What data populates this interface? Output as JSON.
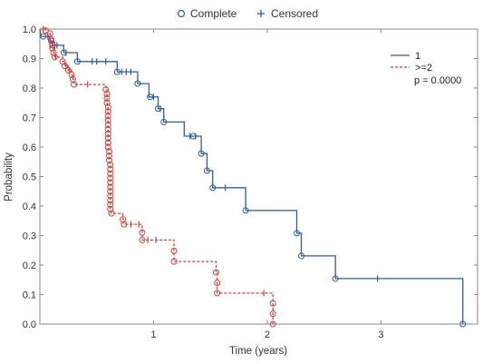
{
  "chart_data": {
    "type": "line",
    "title": "",
    "xlabel": "Time (years)",
    "ylabel": "Probability",
    "xlim": [
      0,
      3.85
    ],
    "ylim": [
      0,
      1.0
    ],
    "x_ticks": [
      "1",
      "2",
      "3"
    ],
    "x_tick_values": [
      1,
      2,
      3
    ],
    "y_ticks": [
      "0.0",
      "0.1",
      "0.2",
      "0.3",
      "0.4",
      "0.5",
      "0.6",
      "0.7",
      "0.8",
      "0.9",
      "1.0"
    ],
    "y_tick_values": [
      0,
      0.1,
      0.2,
      0.3,
      0.4,
      0.5,
      0.6,
      0.7,
      0.8,
      0.9,
      1.0
    ],
    "grid": false,
    "top_legend": {
      "complete_label": "Complete",
      "censored_label": "Censored",
      "color": "#2f5f9e"
    },
    "inner_legend": {
      "placement": "top-right",
      "entries": [
        "1",
        ">=2"
      ],
      "pvalue_text": "p = 0.0000"
    },
    "series": [
      {
        "name": "1",
        "color": "#2f5f9e",
        "line_style": "solid",
        "steps": [
          [
            0.0,
            1.0
          ],
          [
            0.01,
            0.975
          ],
          [
            0.09,
            0.975
          ],
          [
            0.09,
            0.96
          ],
          [
            0.11,
            0.96
          ],
          [
            0.11,
            0.945
          ],
          [
            0.21,
            0.945
          ],
          [
            0.21,
            0.92
          ],
          [
            0.33,
            0.92
          ],
          [
            0.33,
            0.89
          ],
          [
            0.68,
            0.89
          ],
          [
            0.68,
            0.855
          ],
          [
            0.86,
            0.855
          ],
          [
            0.86,
            0.815
          ],
          [
            0.96,
            0.815
          ],
          [
            0.96,
            0.77
          ],
          [
            1.04,
            0.77
          ],
          [
            1.04,
            0.73
          ],
          [
            1.09,
            0.73
          ],
          [
            1.09,
            0.685
          ],
          [
            1.27,
            0.685
          ],
          [
            1.27,
            0.637
          ],
          [
            1.42,
            0.637
          ],
          [
            1.42,
            0.578
          ],
          [
            1.47,
            0.578
          ],
          [
            1.47,
            0.52
          ],
          [
            1.52,
            0.52
          ],
          [
            1.52,
            0.462
          ],
          [
            1.81,
            0.462
          ],
          [
            1.81,
            0.385
          ],
          [
            2.26,
            0.385
          ],
          [
            2.26,
            0.308
          ],
          [
            2.3,
            0.308
          ],
          [
            2.3,
            0.231
          ],
          [
            2.6,
            0.231
          ],
          [
            2.6,
            0.154
          ],
          [
            3.72,
            0.154
          ],
          [
            3.72,
            0.0
          ]
        ],
        "complete_points": [
          [
            0.03,
            0.975
          ],
          [
            0.1,
            0.96
          ],
          [
            0.11,
            0.945
          ],
          [
            0.21,
            0.92
          ],
          [
            0.33,
            0.89
          ],
          [
            0.68,
            0.855
          ],
          [
            0.86,
            0.815
          ],
          [
            0.97,
            0.77
          ],
          [
            1.04,
            0.73
          ],
          [
            1.09,
            0.685
          ],
          [
            1.35,
            0.637
          ],
          [
            1.42,
            0.578
          ],
          [
            1.47,
            0.52
          ],
          [
            1.52,
            0.462
          ],
          [
            1.81,
            0.385
          ],
          [
            2.26,
            0.308
          ],
          [
            2.3,
            0.231
          ],
          [
            2.6,
            0.154
          ],
          [
            3.72,
            0.0
          ]
        ],
        "censored_points": [
          [
            0.07,
            0.975
          ],
          [
            0.13,
            0.945
          ],
          [
            0.15,
            0.945
          ],
          [
            0.23,
            0.92
          ],
          [
            0.46,
            0.89
          ],
          [
            0.5,
            0.89
          ],
          [
            0.58,
            0.89
          ],
          [
            0.72,
            0.855
          ],
          [
            0.76,
            0.855
          ],
          [
            0.8,
            0.855
          ],
          [
            1.0,
            0.77
          ],
          [
            1.06,
            0.73
          ],
          [
            1.32,
            0.637
          ],
          [
            1.37,
            0.637
          ],
          [
            1.63,
            0.462
          ],
          [
            2.97,
            0.154
          ]
        ]
      },
      {
        "name": ">=2",
        "color": "#d8413a",
        "line_style": "dashed",
        "steps": [
          [
            0.0,
            1.0
          ],
          [
            0.05,
            1.0
          ],
          [
            0.05,
            0.985
          ],
          [
            0.09,
            0.985
          ],
          [
            0.09,
            0.965
          ],
          [
            0.1,
            0.965
          ],
          [
            0.1,
            0.95
          ],
          [
            0.11,
            0.95
          ],
          [
            0.11,
            0.935
          ],
          [
            0.12,
            0.935
          ],
          [
            0.12,
            0.92
          ],
          [
            0.13,
            0.92
          ],
          [
            0.13,
            0.905
          ],
          [
            0.2,
            0.905
          ],
          [
            0.2,
            0.89
          ],
          [
            0.22,
            0.89
          ],
          [
            0.22,
            0.875
          ],
          [
            0.25,
            0.875
          ],
          [
            0.25,
            0.86
          ],
          [
            0.28,
            0.86
          ],
          [
            0.28,
            0.845
          ],
          [
            0.29,
            0.845
          ],
          [
            0.29,
            0.83
          ],
          [
            0.3,
            0.83
          ],
          [
            0.3,
            0.812
          ],
          [
            0.58,
            0.812
          ],
          [
            0.58,
            0.795
          ],
          [
            0.59,
            0.795
          ],
          [
            0.59,
            0.78
          ],
          [
            0.59,
            0.765
          ],
          [
            0.59,
            0.75
          ],
          [
            0.6,
            0.735
          ],
          [
            0.6,
            0.72
          ],
          [
            0.6,
            0.705
          ],
          [
            0.6,
            0.69
          ],
          [
            0.6,
            0.675
          ],
          [
            0.6,
            0.66
          ],
          [
            0.6,
            0.645
          ],
          [
            0.6,
            0.63
          ],
          [
            0.6,
            0.615
          ],
          [
            0.6,
            0.6
          ],
          [
            0.61,
            0.585
          ],
          [
            0.61,
            0.57
          ],
          [
            0.61,
            0.555
          ],
          [
            0.62,
            0.54
          ],
          [
            0.62,
            0.525
          ],
          [
            0.62,
            0.51
          ],
          [
            0.62,
            0.495
          ],
          [
            0.62,
            0.48
          ],
          [
            0.62,
            0.465
          ],
          [
            0.62,
            0.45
          ],
          [
            0.62,
            0.435
          ],
          [
            0.62,
            0.42
          ],
          [
            0.62,
            0.405
          ],
          [
            0.62,
            0.39
          ],
          [
            0.63,
            0.375
          ],
          [
            0.73,
            0.375
          ],
          [
            0.73,
            0.355
          ],
          [
            0.74,
            0.355
          ],
          [
            0.74,
            0.338
          ],
          [
            0.9,
            0.338
          ],
          [
            0.9,
            0.31
          ],
          [
            0.9,
            0.285
          ],
          [
            1.18,
            0.285
          ],
          [
            1.18,
            0.248
          ],
          [
            1.18,
            0.212
          ],
          [
            1.55,
            0.212
          ],
          [
            1.55,
            0.175
          ],
          [
            1.56,
            0.175
          ],
          [
            1.56,
            0.14
          ],
          [
            1.56,
            0.105
          ],
          [
            2.05,
            0.105
          ],
          [
            2.05,
            0.07
          ],
          [
            2.05,
            0.035
          ],
          [
            2.05,
            0.0
          ]
        ],
        "complete_points": [
          [
            0.05,
            0.995
          ],
          [
            0.09,
            0.985
          ],
          [
            0.1,
            0.965
          ],
          [
            0.11,
            0.95
          ],
          [
            0.11,
            0.935
          ],
          [
            0.12,
            0.92
          ],
          [
            0.13,
            0.905
          ],
          [
            0.2,
            0.89
          ],
          [
            0.22,
            0.875
          ],
          [
            0.25,
            0.86
          ],
          [
            0.28,
            0.845
          ],
          [
            0.29,
            0.83
          ],
          [
            0.3,
            0.812
          ],
          [
            0.58,
            0.795
          ],
          [
            0.59,
            0.78
          ],
          [
            0.59,
            0.765
          ],
          [
            0.59,
            0.75
          ],
          [
            0.6,
            0.735
          ],
          [
            0.6,
            0.72
          ],
          [
            0.6,
            0.705
          ],
          [
            0.6,
            0.69
          ],
          [
            0.6,
            0.675
          ],
          [
            0.6,
            0.66
          ],
          [
            0.6,
            0.645
          ],
          [
            0.6,
            0.63
          ],
          [
            0.6,
            0.615
          ],
          [
            0.6,
            0.6
          ],
          [
            0.61,
            0.585
          ],
          [
            0.61,
            0.57
          ],
          [
            0.61,
            0.555
          ],
          [
            0.62,
            0.54
          ],
          [
            0.62,
            0.525
          ],
          [
            0.62,
            0.51
          ],
          [
            0.62,
            0.495
          ],
          [
            0.62,
            0.48
          ],
          [
            0.62,
            0.465
          ],
          [
            0.62,
            0.45
          ],
          [
            0.62,
            0.435
          ],
          [
            0.62,
            0.42
          ],
          [
            0.62,
            0.405
          ],
          [
            0.62,
            0.39
          ],
          [
            0.63,
            0.375
          ],
          [
            0.73,
            0.355
          ],
          [
            0.74,
            0.338
          ],
          [
            0.9,
            0.31
          ],
          [
            0.9,
            0.285
          ],
          [
            1.18,
            0.248
          ],
          [
            1.18,
            0.212
          ],
          [
            1.55,
            0.175
          ],
          [
            1.56,
            0.14
          ],
          [
            1.56,
            0.105
          ],
          [
            2.05,
            0.07
          ],
          [
            2.05,
            0.035
          ],
          [
            2.05,
            0.0
          ]
        ],
        "censored_points": [
          [
            0.03,
            1.0
          ],
          [
            0.14,
            0.905
          ],
          [
            0.23,
            0.875
          ],
          [
            0.26,
            0.86
          ],
          [
            0.42,
            0.812
          ],
          [
            0.8,
            0.338
          ],
          [
            0.87,
            0.338
          ],
          [
            0.95,
            0.285
          ],
          [
            1.02,
            0.285
          ],
          [
            1.97,
            0.105
          ]
        ]
      }
    ]
  }
}
